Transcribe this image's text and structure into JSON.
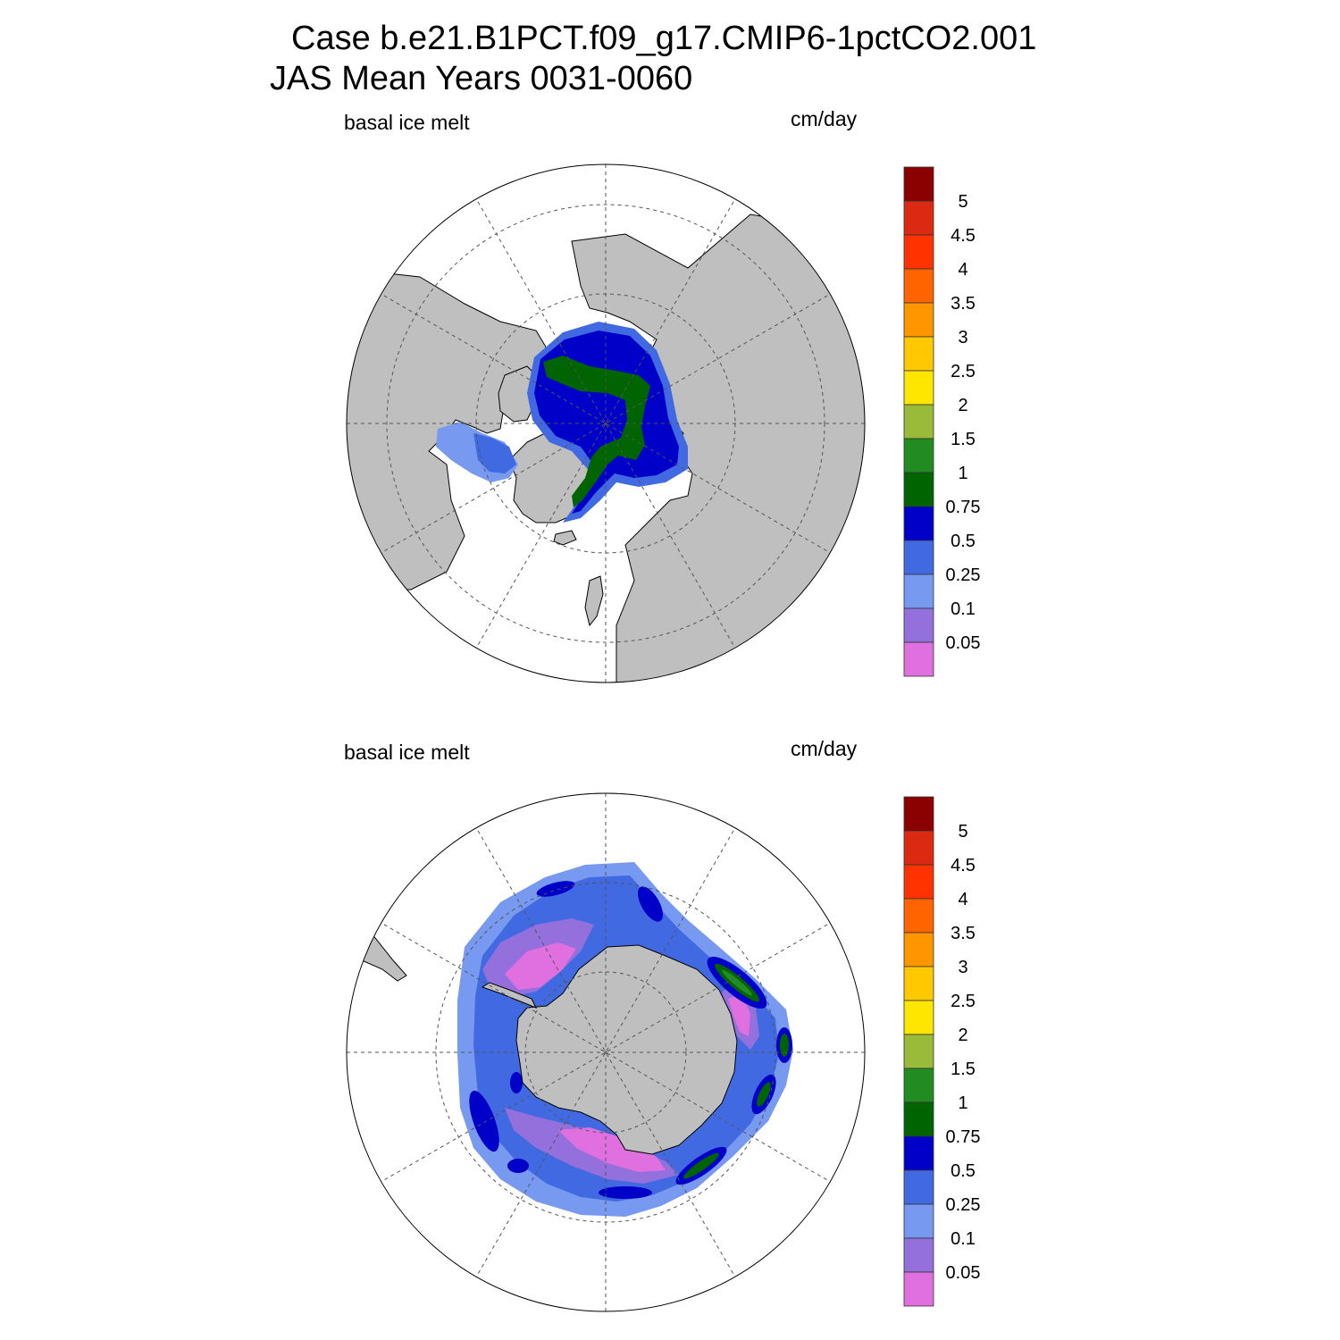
{
  "title": {
    "line1": "Case b.e21.B1PCT.f09_g17.CMIP6-1pctCO2.001",
    "line2": "JAS Mean   Years 0031-0060"
  },
  "panels": [
    {
      "hemisphere": "north",
      "variable_label": "basal ice melt",
      "units_label": "cm/day"
    },
    {
      "hemisphere": "south",
      "variable_label": "basal ice melt",
      "units_label": "cm/day"
    }
  ],
  "colorbar": {
    "levels": [
      "5",
      "4.5",
      "4",
      "3.5",
      "3",
      "2.5",
      "2",
      "1.5",
      "1",
      "0.75",
      "0.5",
      "0.25",
      "0.1",
      "0.05"
    ],
    "colors": [
      "#8b0000",
      "#dc2a12",
      "#ff3200",
      "#ff6400",
      "#ff9600",
      "#ffc800",
      "#ffe600",
      "#9aba3a",
      "#228b22",
      "#006400",
      "#0000c8",
      "#4169e1",
      "#7799f0",
      "#9370db",
      "#e070e0"
    ]
  },
  "colors": {
    "land": "#bfbfbf",
    "ocean": "#ffffff"
  }
}
